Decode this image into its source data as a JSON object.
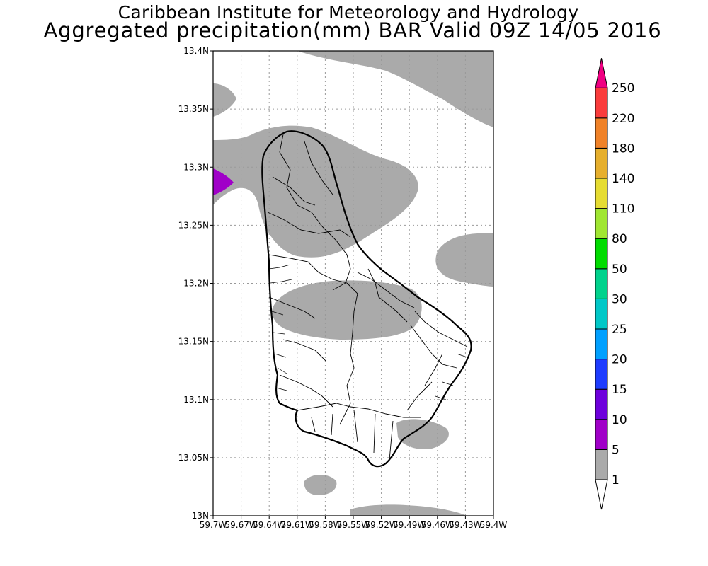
{
  "header": {
    "line1": "Caribbean Institute for Meteorology and Hydrology",
    "line2": "Aggregated precipitation(mm) BAR Valid 09Z 14/05 2016"
  },
  "map": {
    "lat_ticks": [
      "13.4N",
      "13.35N",
      "13.3N",
      "13.25N",
      "13.2N",
      "13.15N",
      "13.1N",
      "13.05N",
      "13N"
    ],
    "lon_ticks": [
      "59.7W",
      "59.67W",
      "59.64W",
      "59.61W",
      "59.58W",
      "59.55W",
      "59.52W",
      "59.49W",
      "59.46W",
      "59.43W",
      "59.4W"
    ],
    "shade_colors": {
      "light": "#aaaaaa",
      "magenta": "#a000c8"
    }
  },
  "colorbar": {
    "labels": [
      "1",
      "5",
      "10",
      "15",
      "20",
      "25",
      "30",
      "50",
      "80",
      "110",
      "140",
      "180",
      "220",
      "250"
    ],
    "colors": [
      "#aaaaaa",
      "#a000c8",
      "#6e00dc",
      "#1e3cff",
      "#00a0ff",
      "#00c8c8",
      "#00d28c",
      "#00dc00",
      "#a0e632",
      "#e6dc32",
      "#e6af2d",
      "#f08228",
      "#fa3c3c",
      "#f00082"
    ]
  }
}
